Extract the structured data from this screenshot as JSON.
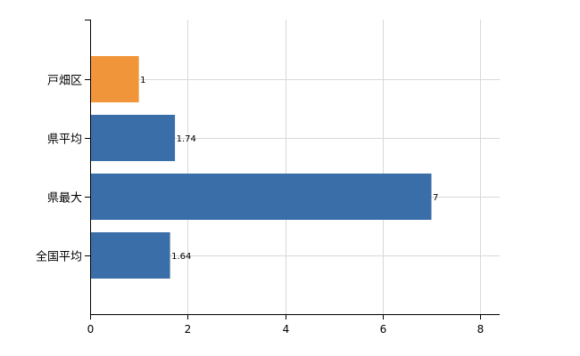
{
  "chart_data": {
    "type": "bar",
    "orientation": "horizontal",
    "categories": [
      "戸畑区",
      "県平均",
      "県最大",
      "全国平均"
    ],
    "values": [
      1,
      1.74,
      7,
      1.64
    ],
    "value_labels": [
      "1",
      "1.74",
      "7",
      "1.64"
    ],
    "bar_colors": [
      "#f0953a",
      "#3a6ea8",
      "#3a6ea8",
      "#3a6ea8"
    ],
    "xlim": [
      0,
      8.4
    ],
    "xticks": [
      0,
      2,
      4,
      6,
      8
    ],
    "xtick_labels": [
      "0",
      "2",
      "4",
      "6",
      "8"
    ],
    "grid": true,
    "title": "",
    "xlabel": "",
    "ylabel": ""
  }
}
